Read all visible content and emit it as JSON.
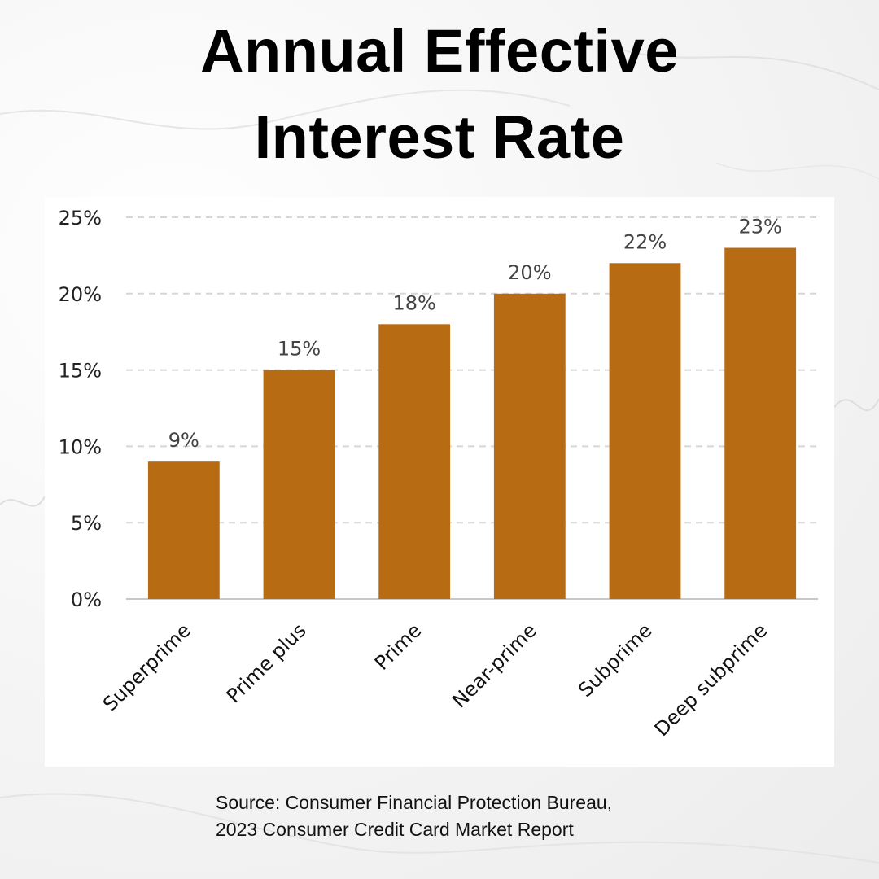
{
  "title": {
    "line1": "Annual Effective",
    "line2": "Interest Rate"
  },
  "chart_data": {
    "type": "bar",
    "categories": [
      "Superprime",
      "Prime plus",
      "Prime",
      "Near-prime",
      "Subprime",
      "Deep subprime"
    ],
    "values": [
      9,
      15,
      18,
      20,
      22,
      23
    ],
    "data_labels": [
      "9%",
      "15%",
      "18%",
      "20%",
      "22%",
      "23%"
    ],
    "title": "Annual Effective Interest Rate",
    "xlabel": "",
    "ylabel": "",
    "ylim": [
      0,
      25
    ],
    "yticks": [
      0,
      5,
      10,
      15,
      20,
      25
    ],
    "ytick_labels": [
      "0%",
      "5%",
      "10%",
      "15%",
      "20%",
      "25%"
    ],
    "grid": "horizontal dashed",
    "bar_color": "#b76b13",
    "legend": "none"
  },
  "source": {
    "line1": "Source: Consumer Financial Protection Bureau,",
    "line2": "2023 Consumer Credit Card Market Report"
  }
}
